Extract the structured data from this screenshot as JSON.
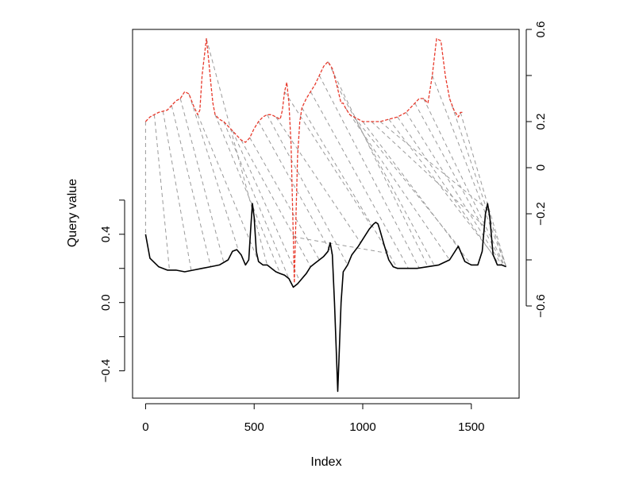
{
  "chart_data": {
    "type": "line",
    "title": "",
    "xlabel": "Index",
    "ylabel": "Query value",
    "xlim": [
      -60,
      1720
    ],
    "ylim_left": [
      -0.56,
      1.6
    ],
    "ylim_right": [
      -1.0,
      0.6
    ],
    "x_ticks": [
      "0",
      "500",
      "1000",
      "1500"
    ],
    "y_ticks_left": [
      "-0.4",
      "0.0",
      "0.4"
    ],
    "y_ticks_right": [
      "-0.6",
      "-0.2",
      "0",
      "0.2",
      "0.6"
    ],
    "grid": false,
    "legend": "none",
    "colors": {
      "query": "#000000",
      "reference": "#e8392b",
      "alignment": "#9a9a9a"
    },
    "series": [
      {
        "role": "query",
        "axis": "left",
        "style": "solid",
        "x": [
          0,
          20,
          60,
          100,
          140,
          180,
          220,
          260,
          300,
          340,
          380,
          400,
          420,
          440,
          460,
          475,
          485,
          492,
          500,
          510,
          520,
          540,
          560,
          580,
          600,
          620,
          640,
          660,
          680,
          700,
          720,
          740,
          760,
          780,
          800,
          820,
          840,
          850,
          860,
          870,
          880,
          885,
          890,
          900,
          910,
          930,
          950,
          980,
          1010,
          1030,
          1050,
          1060,
          1070,
          1080,
          1100,
          1120,
          1140,
          1160,
          1180,
          1200,
          1250,
          1300,
          1350,
          1400,
          1440,
          1470,
          1500,
          1530,
          1550,
          1565,
          1575,
          1585,
          1600,
          1620,
          1640,
          1660
        ],
        "y": [
          0.4,
          0.26,
          0.21,
          0.19,
          0.19,
          0.18,
          0.19,
          0.2,
          0.21,
          0.22,
          0.25,
          0.3,
          0.31,
          0.28,
          0.22,
          0.25,
          0.45,
          0.58,
          0.5,
          0.3,
          0.24,
          0.22,
          0.22,
          0.2,
          0.18,
          0.17,
          0.16,
          0.14,
          0.09,
          0.11,
          0.14,
          0.17,
          0.21,
          0.23,
          0.25,
          0.27,
          0.3,
          0.35,
          0.28,
          0.0,
          -0.35,
          -0.52,
          -0.35,
          0.0,
          0.18,
          0.22,
          0.28,
          0.33,
          0.39,
          0.43,
          0.46,
          0.47,
          0.46,
          0.42,
          0.33,
          0.25,
          0.21,
          0.2,
          0.2,
          0.2,
          0.2,
          0.21,
          0.22,
          0.25,
          0.33,
          0.24,
          0.22,
          0.22,
          0.3,
          0.52,
          0.58,
          0.5,
          0.28,
          0.22,
          0.22,
          0.21
        ]
      },
      {
        "role": "reference",
        "axis": "right",
        "style": "dashed",
        "x": [
          0,
          20,
          60,
          100,
          140,
          160,
          180,
          200,
          220,
          240,
          250,
          260,
          270,
          280,
          290,
          300,
          310,
          320,
          340,
          360,
          380,
          400,
          420,
          440,
          460,
          480,
          500,
          520,
          540,
          560,
          580,
          600,
          620,
          630,
          640,
          650,
          660,
          670,
          680,
          685,
          690,
          700,
          710,
          720,
          740,
          760,
          780,
          800,
          820,
          840,
          860,
          880,
          900,
          910,
          920,
          940,
          960,
          980,
          1000,
          1040,
          1080,
          1120,
          1160,
          1200,
          1240,
          1260,
          1280,
          1300,
          1320,
          1340,
          1360,
          1380,
          1400,
          1420,
          1440,
          1450,
          1460
        ],
        "y": [
          0.2,
          0.22,
          0.24,
          0.25,
          0.29,
          0.3,
          0.33,
          0.32,
          0.27,
          0.23,
          0.25,
          0.4,
          0.48,
          0.56,
          0.47,
          0.37,
          0.28,
          0.23,
          0.21,
          0.2,
          0.18,
          0.16,
          0.14,
          0.12,
          0.11,
          0.13,
          0.17,
          0.2,
          0.22,
          0.23,
          0.23,
          0.22,
          0.21,
          0.25,
          0.33,
          0.37,
          0.28,
          0.1,
          -0.3,
          -0.5,
          -0.3,
          0.05,
          0.2,
          0.26,
          0.3,
          0.33,
          0.36,
          0.4,
          0.44,
          0.46,
          0.43,
          0.36,
          0.28,
          0.28,
          0.26,
          0.23,
          0.22,
          0.21,
          0.2,
          0.2,
          0.2,
          0.21,
          0.22,
          0.24,
          0.28,
          0.3,
          0.3,
          0.28,
          0.4,
          0.56,
          0.55,
          0.4,
          0.3,
          0.25,
          0.22,
          0.24,
          0.24
        ]
      }
    ],
    "alignment_pairs": [
      [
        0,
        0
      ],
      [
        40,
        110
      ],
      [
        80,
        210
      ],
      [
        120,
        300
      ],
      [
        160,
        360
      ],
      [
        200,
        430
      ],
      [
        240,
        520
      ],
      [
        280,
        560
      ],
      [
        320,
        620
      ],
      [
        360,
        660
      ],
      [
        400,
        710
      ],
      [
        440,
        760
      ],
      [
        480,
        800
      ],
      [
        520,
        860
      ],
      [
        560,
        930
      ],
      [
        600,
        990
      ],
      [
        640,
        1040
      ],
      [
        680,
        1110
      ],
      [
        720,
        1160
      ],
      [
        760,
        1210
      ],
      [
        800,
        1260
      ],
      [
        840,
        1300
      ],
      [
        880,
        1330
      ],
      [
        920,
        1400
      ],
      [
        960,
        1440
      ],
      [
        1000,
        1500
      ],
      [
        1040,
        1560
      ],
      [
        1080,
        1580
      ],
      [
        1120,
        1600
      ],
      [
        1160,
        1630
      ],
      [
        1200,
        1640
      ],
      [
        1240,
        1650
      ],
      [
        1280,
        1655
      ],
      [
        1320,
        1660
      ],
      [
        1400,
        1660
      ],
      [
        1450,
        1660
      ]
    ]
  }
}
